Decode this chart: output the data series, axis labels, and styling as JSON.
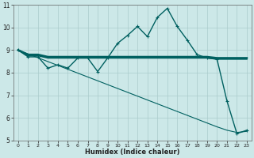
{
  "xlabel": "Humidex (Indice chaleur)",
  "bg_color": "#cce8e8",
  "grid_color": "#aacccc",
  "line_color": "#006060",
  "xlim": [
    -0.5,
    23.5
  ],
  "ylim": [
    5,
    11
  ],
  "xticks": [
    0,
    1,
    2,
    3,
    4,
    5,
    6,
    7,
    8,
    9,
    10,
    11,
    12,
    13,
    14,
    15,
    16,
    17,
    18,
    19,
    20,
    21,
    22,
    23
  ],
  "yticks": [
    5,
    6,
    7,
    8,
    9,
    10,
    11
  ],
  "series": [
    {
      "x": [
        0,
        1,
        2,
        3,
        4,
        5,
        6,
        7,
        8,
        9,
        10,
        11,
        12,
        13,
        14,
        15,
        16,
        17,
        18,
        19,
        20,
        21,
        22,
        23
      ],
      "y": [
        9.0,
        8.8,
        8.8,
        8.7,
        8.7,
        8.7,
        8.7,
        8.7,
        8.7,
        8.7,
        8.7,
        8.7,
        8.7,
        8.7,
        8.7,
        8.7,
        8.7,
        8.7,
        8.7,
        8.7,
        8.65,
        8.65,
        8.65,
        8.65
      ],
      "marker": false,
      "linestyle": "-",
      "linewidth": 1.8
    },
    {
      "x": [
        0,
        1,
        2,
        3,
        4,
        5,
        6,
        7,
        8,
        9,
        10,
        11,
        12,
        13,
        14,
        15,
        16,
        17,
        18,
        19,
        20,
        21,
        22,
        23
      ],
      "y": [
        9.0,
        8.75,
        8.75,
        8.65,
        8.65,
        8.65,
        8.65,
        8.65,
        8.65,
        8.65,
        8.65,
        8.65,
        8.65,
        8.65,
        8.65,
        8.65,
        8.65,
        8.65,
        8.65,
        8.65,
        8.6,
        8.6,
        8.6,
        8.6
      ],
      "marker": false,
      "linestyle": "-",
      "linewidth": 1.2
    },
    {
      "x": [
        0,
        1,
        2,
        3,
        4,
        5,
        6,
        7,
        8,
        9,
        10,
        11,
        12,
        13,
        14,
        15,
        16,
        17,
        18,
        19,
        20,
        21,
        22,
        23
      ],
      "y": [
        9.0,
        8.7,
        8.7,
        8.2,
        8.35,
        8.2,
        8.65,
        8.65,
        8.05,
        8.65,
        9.3,
        9.65,
        10.05,
        9.6,
        10.45,
        10.85,
        10.05,
        9.45,
        8.8,
        8.65,
        8.6,
        6.75,
        5.3,
        5.45
      ],
      "marker": true,
      "linestyle": "-",
      "linewidth": 1.0
    },
    {
      "x": [
        0,
        1,
        2,
        3,
        4,
        5,
        6,
        7,
        8,
        9,
        10,
        11,
        12,
        13,
        14,
        15,
        16,
        17,
        18,
        19,
        20,
        21,
        22,
        23
      ],
      "y": [
        9.0,
        8.83,
        8.66,
        8.49,
        8.32,
        8.15,
        7.98,
        7.81,
        7.64,
        7.47,
        7.3,
        7.13,
        6.96,
        6.79,
        6.62,
        6.45,
        6.28,
        6.11,
        5.94,
        5.77,
        5.6,
        5.45,
        5.35,
        5.4
      ],
      "marker": false,
      "linestyle": "-",
      "linewidth": 0.8
    }
  ]
}
